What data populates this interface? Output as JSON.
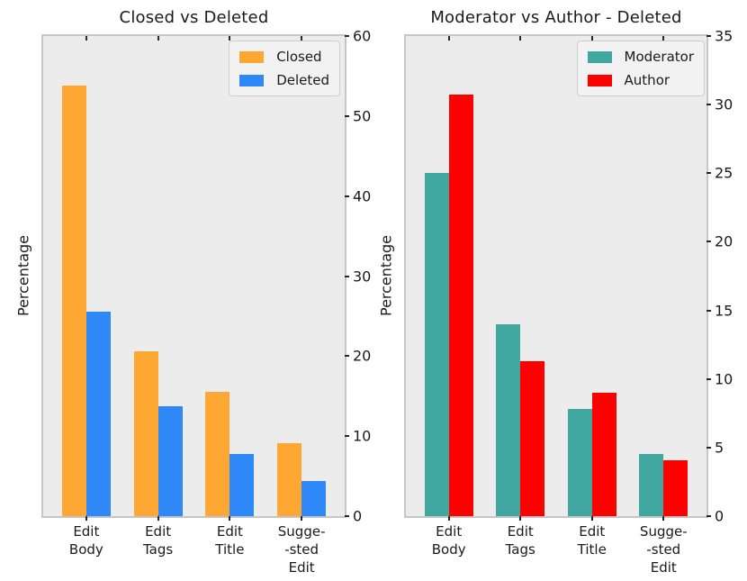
{
  "figure": {
    "background": "#ffffff",
    "axes_background": "#ececec",
    "spine_color": "#c6c6c6",
    "tick_color": "#262626",
    "text_color": "#1a1a1a",
    "legend_background": "#f2f2f2",
    "legend_border": "#cdcdcd"
  },
  "chart_data": [
    {
      "type": "bar",
      "title": "Closed vs Deleted",
      "ylabel": "Percentage",
      "xlabel": "",
      "ylim": [
        0,
        60
      ],
      "yticks": [
        0,
        10,
        20,
        30,
        40,
        50,
        60
      ],
      "yaxis_side": "right",
      "grid": false,
      "legend_position": "upper-right",
      "categories": [
        [
          "Edit",
          "Body"
        ],
        [
          "Edit",
          "Tags"
        ],
        [
          "Edit",
          "Title"
        ],
        [
          "Sugge-",
          "-sted",
          "Edit"
        ]
      ],
      "series": [
        {
          "name": "Closed",
          "color": "#ffa733",
          "values": [
            53.8,
            20.6,
            15.5,
            9.1
          ]
        },
        {
          "name": "Deleted",
          "color": "#2f88f8",
          "values": [
            25.6,
            13.7,
            7.8,
            4.4
          ]
        }
      ]
    },
    {
      "type": "bar",
      "title": "Moderator vs Author - Deleted",
      "ylabel": "Percentage",
      "xlabel": "",
      "ylim": [
        0,
        35
      ],
      "yticks": [
        0,
        5,
        10,
        15,
        20,
        25,
        30,
        35
      ],
      "yaxis_side": "right",
      "grid": false,
      "legend_position": "upper-right",
      "categories": [
        [
          "Edit",
          "Body"
        ],
        [
          "Edit",
          "Tags"
        ],
        [
          "Edit",
          "Title"
        ],
        [
          "Sugge-",
          "-sted",
          "Edit"
        ]
      ],
      "series": [
        {
          "name": "Moderator",
          "color": "#40a8a1",
          "values": [
            25.0,
            14.0,
            7.8,
            4.5
          ]
        },
        {
          "name": "Author",
          "color": "#fe0000",
          "values": [
            30.7,
            11.3,
            9.0,
            4.1
          ]
        }
      ]
    }
  ]
}
